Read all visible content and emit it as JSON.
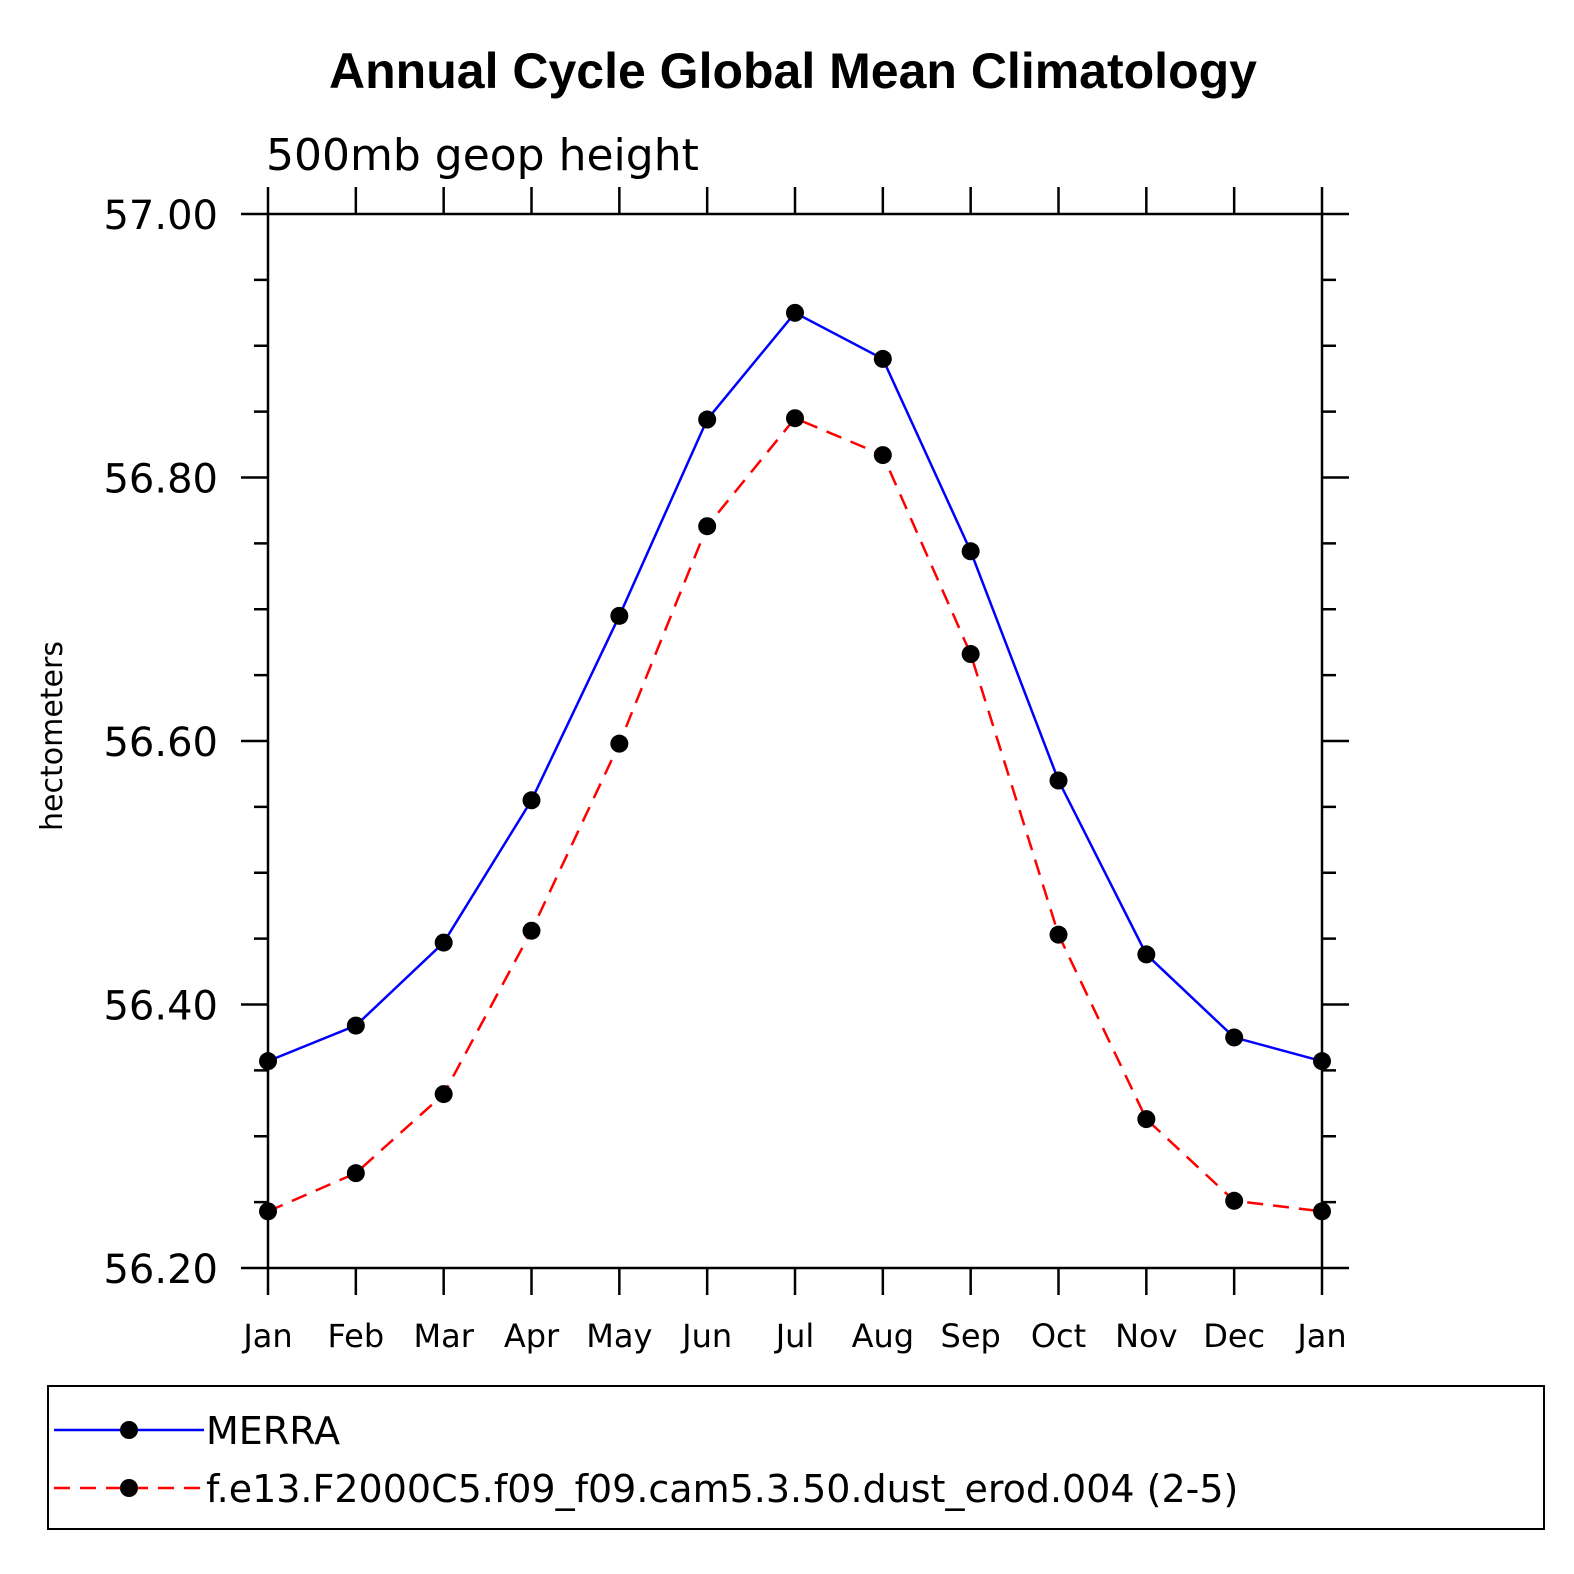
{
  "chart_data": {
    "type": "line",
    "title": "Annual Cycle Global Mean Climatology",
    "subtitle": "500mb geop height",
    "xlabel": "",
    "ylabel": "hectometers",
    "categories": [
      "Jan",
      "Feb",
      "Mar",
      "Apr",
      "May",
      "Jun",
      "Jul",
      "Aug",
      "Sep",
      "Oct",
      "Nov",
      "Dec",
      "Jan"
    ],
    "ylim": [
      56.2,
      57.0
    ],
    "yticks": [
      "56.20",
      "56.40",
      "56.60",
      "56.80",
      "57.00"
    ],
    "grid": false,
    "legend_position": "bottom",
    "series": [
      {
        "name": "MERRA",
        "color": "#0000ff",
        "line_style": "solid",
        "marker": "filled-circle",
        "values": [
          56.357,
          56.384,
          56.447,
          56.555,
          56.695,
          56.844,
          56.925,
          56.89,
          56.744,
          56.57,
          56.438,
          56.375,
          56.357
        ]
      },
      {
        "name": "f.e13.F2000C5.f09_f09.cam5.3.50.dust_erod.004 (2-5)",
        "color": "#ff0000",
        "line_style": "dashed",
        "marker": "filled-circle",
        "values": [
          56.243,
          56.272,
          56.332,
          56.456,
          56.598,
          56.763,
          56.845,
          56.817,
          56.666,
          56.453,
          56.313,
          56.251,
          56.243
        ]
      }
    ]
  }
}
